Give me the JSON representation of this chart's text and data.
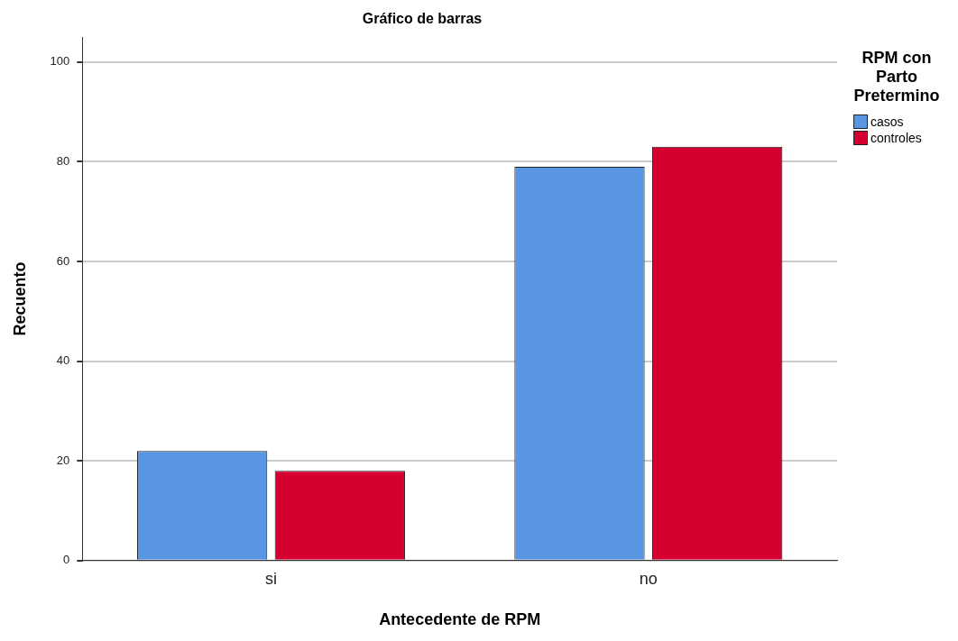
{
  "chart_data": {
    "type": "bar",
    "title": "Gráfico de barras",
    "xlabel": "Antecedente de RPM",
    "ylabel": "Recuento",
    "legend_title": "RPM con Parto Pretermino",
    "categories": [
      "si",
      "no"
    ],
    "series": [
      {
        "name": "casos",
        "color": "#5896e4",
        "values": [
          22,
          79
        ]
      },
      {
        "name": "controles",
        "color": "#d5002f",
        "values": [
          18,
          83
        ]
      }
    ],
    "ylim": [
      0,
      105
    ],
    "yticks": [
      0,
      20,
      40,
      60,
      80,
      100
    ],
    "grid": "y",
    "legend": "top right"
  }
}
